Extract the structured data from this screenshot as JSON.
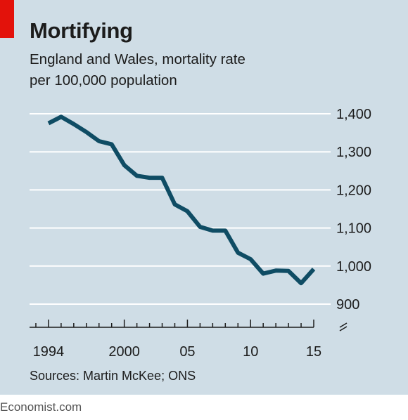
{
  "chart_data": {
    "type": "line",
    "title": "Mortifying",
    "subtitle_lines": [
      "England and Wales, mortality rate",
      "per 100,000 population"
    ],
    "x": [
      1994,
      1995,
      1996,
      1997,
      1998,
      1999,
      2000,
      2001,
      2002,
      2003,
      2004,
      2005,
      2006,
      2007,
      2008,
      2009,
      2010,
      2011,
      2012,
      2013,
      2014,
      2015
    ],
    "series": [
      {
        "values": [
          1375,
          1392,
          1373,
          1352,
          1328,
          1320,
          1265,
          1237,
          1232,
          1232,
          1162,
          1144,
          1103,
          1093,
          1093,
          1035,
          1018,
          980,
          988,
          987,
          955,
          992
        ]
      }
    ],
    "xlim": [
      1992.5,
      2015
    ],
    "ylim": [
      900,
      1400
    ],
    "yticks": [
      900,
      1000,
      1100,
      1200,
      1300,
      1400
    ],
    "ytick_labels": [
      "900",
      "1,000",
      "1,100",
      "1,200",
      "1,300",
      "1,400"
    ],
    "xtick_labels": [
      {
        "value": 1994,
        "label": "1994"
      },
      {
        "value": 2000,
        "label": "2000"
      },
      {
        "value": 2005,
        "label": "05"
      },
      {
        "value": 2010,
        "label": "10"
      },
      {
        "value": 2015,
        "label": "15"
      }
    ],
    "grid": true,
    "y_axis_position": "right",
    "axis_break": true,
    "line_color": "#0f4c64",
    "source": "Sources: Martin McKee; ONS",
    "credit": "Economist.com"
  }
}
